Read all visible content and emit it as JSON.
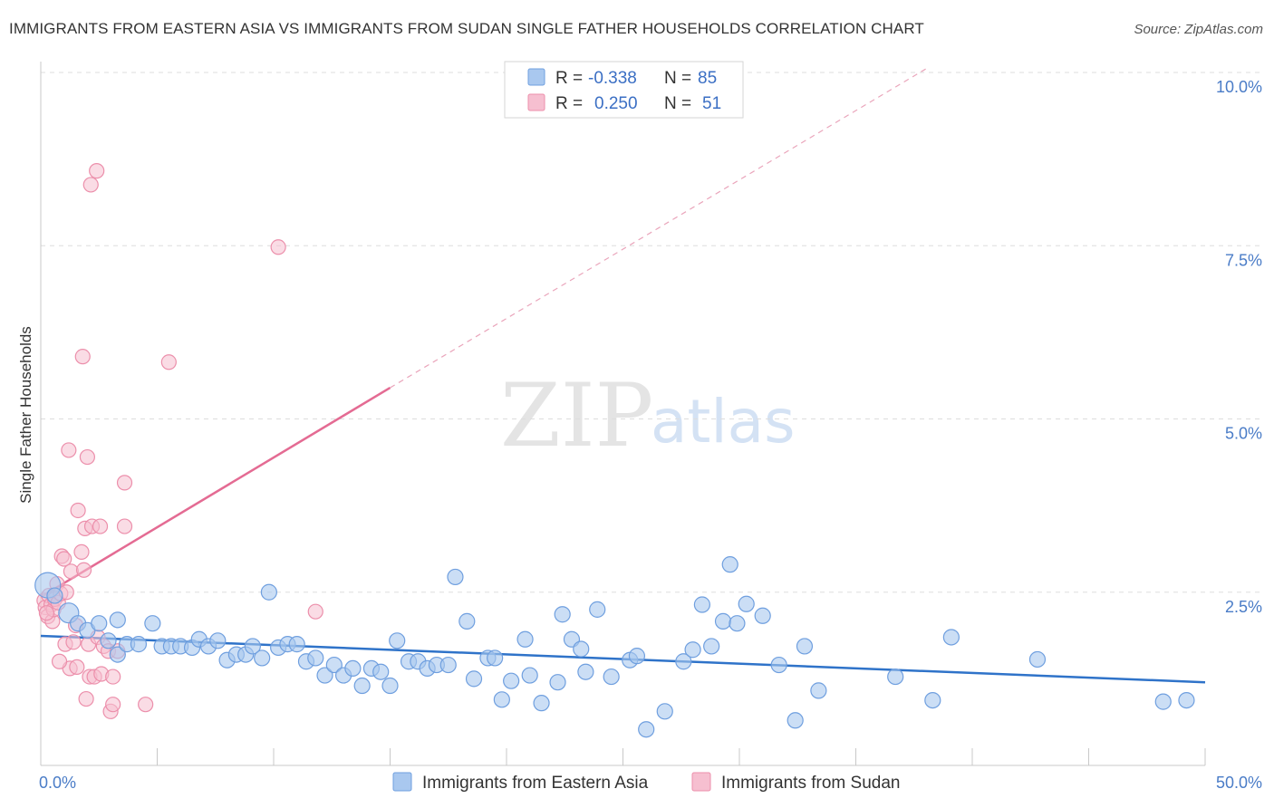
{
  "header": {
    "title": "IMMIGRANTS FROM EASTERN ASIA VS IMMIGRANTS FROM SUDAN SINGLE FATHER HOUSEHOLDS CORRELATION CHART",
    "source": "Source: ZipAtlas.com"
  },
  "watermark": {
    "part1": "ZIP",
    "part2": "atlas"
  },
  "legend_top": {
    "rows": [
      {
        "r_label": "R =",
        "r_value": "-0.338",
        "n_label": "N =",
        "n_value": "85"
      },
      {
        "r_label": "R =",
        "r_value": "0.250",
        "n_label": "N =",
        "n_value": "51"
      }
    ]
  },
  "colors": {
    "blue_fill": "#a9c8ef",
    "blue_stroke": "#6f9fdf",
    "blue_line": "#2f73c9",
    "pink_fill": "#f6bfd0",
    "pink_stroke": "#ec8fab",
    "pink_line": "#e46b93",
    "tick_label": "#4a7cc7",
    "grid": "#dddddd"
  },
  "chart_data": {
    "type": "scatter",
    "title": "IMMIGRANTS FROM EASTERN ASIA VS IMMIGRANTS FROM SUDAN SINGLE FATHER HOUSEHOLDS CORRELATION CHART",
    "xlabel": "",
    "ylabel": "Single Father Households",
    "xlim": [
      0,
      50
    ],
    "ylim": [
      0,
      10.5
    ],
    "x_tick_labels": [
      "0.0%",
      "50.0%"
    ],
    "y_ticks": [
      2.5,
      5.0,
      7.5,
      10.0
    ],
    "y_tick_labels": [
      "2.5%",
      "5.0%",
      "7.5%",
      "10.0%"
    ],
    "grid": "horizontal dashed",
    "legend_position": "top-center",
    "series": [
      {
        "name": "Immigrants from Eastern Asia",
        "R": -0.338,
        "N": 85,
        "trend": {
          "x": [
            0,
            50
          ],
          "y": [
            1.87,
            1.2
          ]
        },
        "points": [
          [
            0.3,
            2.6
          ],
          [
            0.6,
            2.45
          ],
          [
            1.2,
            2.2
          ],
          [
            1.6,
            2.05
          ],
          [
            2.0,
            1.95
          ],
          [
            2.5,
            2.05
          ],
          [
            2.9,
            1.8
          ],
          [
            3.3,
            1.6
          ],
          [
            3.3,
            2.1
          ],
          [
            3.7,
            1.75
          ],
          [
            4.2,
            1.75
          ],
          [
            4.8,
            2.05
          ],
          [
            5.2,
            1.72
          ],
          [
            5.6,
            1.72
          ],
          [
            6.0,
            1.72
          ],
          [
            6.5,
            1.7
          ],
          [
            6.8,
            1.82
          ],
          [
            7.2,
            1.72
          ],
          [
            7.6,
            1.8
          ],
          [
            8.0,
            1.52
          ],
          [
            8.4,
            1.6
          ],
          [
            8.8,
            1.6
          ],
          [
            9.1,
            1.72
          ],
          [
            9.5,
            1.55
          ],
          [
            9.8,
            2.5
          ],
          [
            10.2,
            1.7
          ],
          [
            10.6,
            1.75
          ],
          [
            11.0,
            1.75
          ],
          [
            11.4,
            1.5
          ],
          [
            11.8,
            1.55
          ],
          [
            12.2,
            1.3
          ],
          [
            12.6,
            1.45
          ],
          [
            13.0,
            1.3
          ],
          [
            13.4,
            1.4
          ],
          [
            13.8,
            1.15
          ],
          [
            14.2,
            1.4
          ],
          [
            14.6,
            1.35
          ],
          [
            15.0,
            1.15
          ],
          [
            15.3,
            1.8
          ],
          [
            15.8,
            1.5
          ],
          [
            16.2,
            1.5
          ],
          [
            16.6,
            1.4
          ],
          [
            17.0,
            1.45
          ],
          [
            17.5,
            1.45
          ],
          [
            17.8,
            2.72
          ],
          [
            18.3,
            2.08
          ],
          [
            18.6,
            1.25
          ],
          [
            19.2,
            1.55
          ],
          [
            19.5,
            1.55
          ],
          [
            19.8,
            0.95
          ],
          [
            20.2,
            1.22
          ],
          [
            20.8,
            1.82
          ],
          [
            21.0,
            1.3
          ],
          [
            21.5,
            0.9
          ],
          [
            22.2,
            1.2
          ],
          [
            22.4,
            2.18
          ],
          [
            22.8,
            1.82
          ],
          [
            23.2,
            1.68
          ],
          [
            23.4,
            1.35
          ],
          [
            23.9,
            2.25
          ],
          [
            24.5,
            1.28
          ],
          [
            25.3,
            1.52
          ],
          [
            25.6,
            1.58
          ],
          [
            26.0,
            0.52
          ],
          [
            26.8,
            0.78
          ],
          [
            27.6,
            1.5
          ],
          [
            28.0,
            1.67
          ],
          [
            28.4,
            2.32
          ],
          [
            28.8,
            1.72
          ],
          [
            29.3,
            2.08
          ],
          [
            29.6,
            2.9
          ],
          [
            29.9,
            2.05
          ],
          [
            30.3,
            2.33
          ],
          [
            31.0,
            2.16
          ],
          [
            31.7,
            1.45
          ],
          [
            32.4,
            0.65
          ],
          [
            32.8,
            1.72
          ],
          [
            33.4,
            1.08
          ],
          [
            36.7,
            1.28
          ],
          [
            38.3,
            0.94
          ],
          [
            39.1,
            1.85
          ],
          [
            42.8,
            1.53
          ],
          [
            48.2,
            0.92
          ],
          [
            49.2,
            0.94
          ]
        ]
      },
      {
        "name": "Immigrants from Sudan",
        "R": 0.25,
        "N": 51,
        "trend": {
          "x": [
            0,
            15
          ],
          "y": [
            2.43,
            5.45
          ]
        },
        "trend_extended": {
          "x": [
            15,
            38
          ],
          "y": [
            5.45,
            10.05
          ]
        },
        "points": [
          [
            0.15,
            2.38
          ],
          [
            0.2,
            2.28
          ],
          [
            0.3,
            2.15
          ],
          [
            0.35,
            2.45
          ],
          [
            0.45,
            2.32
          ],
          [
            0.5,
            2.08
          ],
          [
            0.55,
            2.25
          ],
          [
            0.6,
            2.4
          ],
          [
            0.7,
            2.62
          ],
          [
            0.75,
            2.35
          ],
          [
            0.85,
            2.48
          ],
          [
            0.9,
            3.02
          ],
          [
            1.0,
            2.98
          ],
          [
            1.05,
            1.75
          ],
          [
            1.1,
            2.5
          ],
          [
            1.2,
            4.55
          ],
          [
            1.25,
            1.4
          ],
          [
            1.3,
            2.8
          ],
          [
            1.4,
            1.78
          ],
          [
            1.5,
            2.02
          ],
          [
            1.55,
            1.42
          ],
          [
            1.6,
            3.68
          ],
          [
            1.75,
            3.08
          ],
          [
            1.8,
            5.9
          ],
          [
            1.85,
            2.82
          ],
          [
            1.9,
            3.42
          ],
          [
            1.95,
            0.96
          ],
          [
            2.0,
            4.45
          ],
          [
            2.05,
            1.75
          ],
          [
            2.1,
            1.28
          ],
          [
            2.15,
            8.38
          ],
          [
            2.2,
            3.45
          ],
          [
            2.3,
            1.28
          ],
          [
            2.4,
            8.58
          ],
          [
            2.45,
            1.85
          ],
          [
            2.55,
            3.45
          ],
          [
            2.6,
            1.32
          ],
          [
            2.7,
            1.72
          ],
          [
            2.9,
            1.65
          ],
          [
            3.0,
            0.78
          ],
          [
            3.1,
            1.28
          ],
          [
            3.1,
            0.88
          ],
          [
            3.3,
            1.65
          ],
          [
            3.6,
            4.08
          ],
          [
            3.6,
            3.45
          ],
          [
            4.5,
            0.88
          ],
          [
            5.5,
            5.82
          ],
          [
            10.2,
            7.48
          ],
          [
            11.8,
            2.22
          ],
          [
            0.25,
            2.2
          ],
          [
            0.8,
            1.5
          ]
        ]
      }
    ]
  },
  "bottom_legend": {
    "items": [
      {
        "label": "Immigrants from Eastern Asia"
      },
      {
        "label": "Immigrants from Sudan"
      }
    ]
  }
}
